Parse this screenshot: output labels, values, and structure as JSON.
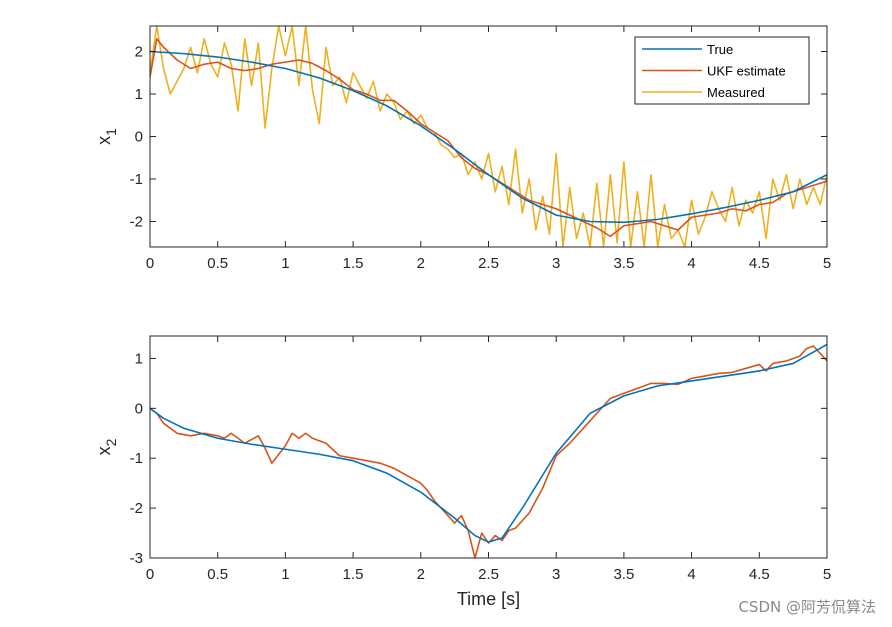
{
  "watermark": "CSDN @阿芳侃算法",
  "colors": {
    "true": "#0072BD",
    "ukf": "#D95319",
    "measured": "#EDB120",
    "axis": "#262626"
  },
  "chart_data": [
    {
      "type": "line",
      "ylabel": "x",
      "ylabel_sub": "1",
      "xlabel": "",
      "xlim": [
        0,
        5
      ],
      "ylim": [
        -2.6,
        2.6
      ],
      "xticks": [
        "0",
        "0.5",
        "1",
        "1.5",
        "2",
        "2.5",
        "3",
        "3.5",
        "4",
        "4.5",
        "5"
      ],
      "yticks": [
        "-2",
        "-1",
        "0",
        "1",
        "2"
      ],
      "legend": {
        "position": "top-right",
        "entries": [
          "True",
          "UKF estimate",
          "Measured"
        ]
      },
      "series": [
        {
          "name": "True",
          "x": [
            0,
            0.25,
            0.5,
            0.75,
            1.0,
            1.25,
            1.5,
            1.75,
            2.0,
            2.25,
            2.5,
            2.75,
            3.0,
            3.25,
            3.5,
            3.75,
            4.0,
            4.25,
            4.5,
            4.75,
            5.0
          ],
          "values": [
            2.0,
            1.95,
            1.87,
            1.75,
            1.6,
            1.38,
            1.08,
            0.72,
            0.25,
            -0.3,
            -0.9,
            -1.45,
            -1.85,
            -2.0,
            -2.02,
            -1.95,
            -1.82,
            -1.67,
            -1.5,
            -1.3,
            -0.9
          ]
        },
        {
          "name": "UKF estimate",
          "x": [
            0,
            0.05,
            0.1,
            0.2,
            0.3,
            0.4,
            0.5,
            0.6,
            0.7,
            0.8,
            0.9,
            1.0,
            1.1,
            1.2,
            1.3,
            1.4,
            1.5,
            1.6,
            1.7,
            1.8,
            1.9,
            2.0,
            2.1,
            2.2,
            2.3,
            2.4,
            2.5,
            2.6,
            2.7,
            2.8,
            2.9,
            3.0,
            3.1,
            3.2,
            3.3,
            3.4,
            3.5,
            3.6,
            3.7,
            3.8,
            3.9,
            4.0,
            4.1,
            4.2,
            4.3,
            4.4,
            4.5,
            4.6,
            4.7,
            4.8,
            4.9,
            5.0
          ],
          "values": [
            1.4,
            2.3,
            2.1,
            1.8,
            1.6,
            1.7,
            1.75,
            1.6,
            1.55,
            1.6,
            1.7,
            1.75,
            1.8,
            1.72,
            1.55,
            1.35,
            1.1,
            1.0,
            0.85,
            0.85,
            0.6,
            0.3,
            0.1,
            -0.1,
            -0.5,
            -0.75,
            -0.9,
            -1.1,
            -1.3,
            -1.5,
            -1.6,
            -1.7,
            -1.85,
            -2.0,
            -2.15,
            -2.35,
            -2.1,
            -2.05,
            -2.0,
            -2.1,
            -2.2,
            -1.9,
            -1.85,
            -1.8,
            -1.7,
            -1.75,
            -1.6,
            -1.55,
            -1.35,
            -1.25,
            -1.15,
            -1.05
          ]
        },
        {
          "name": "Measured",
          "x": [
            0,
            0.05,
            0.1,
            0.15,
            0.2,
            0.25,
            0.3,
            0.35,
            0.4,
            0.45,
            0.5,
            0.55,
            0.6,
            0.65,
            0.7,
            0.75,
            0.8,
            0.85,
            0.9,
            0.95,
            1.0,
            1.05,
            1.1,
            1.15,
            1.2,
            1.25,
            1.3,
            1.35,
            1.4,
            1.45,
            1.5,
            1.55,
            1.6,
            1.65,
            1.7,
            1.75,
            1.8,
            1.85,
            1.9,
            1.95,
            2.0,
            2.05,
            2.1,
            2.15,
            2.2,
            2.25,
            2.3,
            2.35,
            2.4,
            2.45,
            2.5,
            2.55,
            2.6,
            2.65,
            2.7,
            2.75,
            2.8,
            2.85,
            2.9,
            2.95,
            3.0,
            3.05,
            3.1,
            3.15,
            3.2,
            3.25,
            3.3,
            3.35,
            3.4,
            3.45,
            3.5,
            3.55,
            3.6,
            3.65,
            3.7,
            3.75,
            3.8,
            3.85,
            3.9,
            3.95,
            4.0,
            4.05,
            4.1,
            4.15,
            4.2,
            4.25,
            4.3,
            4.35,
            4.4,
            4.45,
            4.5,
            4.55,
            4.6,
            4.65,
            4.7,
            4.75,
            4.8,
            4.85,
            4.9,
            4.95,
            5.0
          ],
          "values": [
            1.5,
            2.6,
            1.6,
            1.0,
            1.3,
            1.6,
            2.1,
            1.5,
            2.3,
            1.7,
            1.4,
            2.2,
            1.7,
            0.6,
            2.3,
            1.2,
            2.2,
            0.2,
            1.6,
            2.6,
            1.9,
            2.6,
            1.2,
            2.6,
            1.1,
            0.3,
            2.1,
            1.2,
            1.4,
            0.8,
            1.5,
            1.2,
            0.9,
            1.3,
            0.6,
            1.0,
            0.8,
            0.4,
            0.6,
            0.3,
            0.5,
            0.2,
            0.1,
            -0.2,
            -0.3,
            -0.5,
            -0.4,
            -0.9,
            -0.6,
            -1.0,
            -0.4,
            -1.3,
            -0.7,
            -1.6,
            -0.3,
            -1.8,
            -1.0,
            -2.2,
            -1.4,
            -2.3,
            -0.4,
            -2.6,
            -1.2,
            -2.4,
            -1.8,
            -2.6,
            -1.1,
            -2.6,
            -0.9,
            -2.5,
            -0.6,
            -2.6,
            -1.3,
            -2.6,
            -0.9,
            -2.6,
            -1.6,
            -2.4,
            -2.2,
            -2.6,
            -1.5,
            -2.3,
            -1.9,
            -1.3,
            -1.7,
            -2.0,
            -1.2,
            -2.1,
            -1.5,
            -1.8,
            -1.3,
            -2.4,
            -1.0,
            -1.5,
            -0.9,
            -1.7,
            -1.0,
            -1.6,
            -1.2,
            -1.6,
            -0.9
          ]
        }
      ]
    },
    {
      "type": "line",
      "ylabel": "x",
      "ylabel_sub": "2",
      "xlabel": "Time [s]",
      "xlim": [
        0,
        5
      ],
      "ylim": [
        -3,
        1.45
      ],
      "xticks": [
        "0",
        "0.5",
        "1",
        "1.5",
        "2",
        "2.5",
        "3",
        "3.5",
        "4",
        "4.5",
        "5"
      ],
      "yticks": [
        "-3",
        "-2",
        "-1",
        "0",
        "1"
      ],
      "series": [
        {
          "name": "True",
          "x": [
            0,
            0.1,
            0.25,
            0.5,
            0.75,
            1.0,
            1.25,
            1.5,
            1.75,
            2.0,
            2.25,
            2.4,
            2.5,
            2.6,
            2.75,
            3.0,
            3.25,
            3.5,
            3.75,
            4.0,
            4.25,
            4.5,
            4.75,
            5.0
          ],
          "values": [
            0,
            -0.2,
            -0.4,
            -0.6,
            -0.72,
            -0.82,
            -0.92,
            -1.05,
            -1.3,
            -1.68,
            -2.2,
            -2.55,
            -2.68,
            -2.6,
            -2.0,
            -0.9,
            -0.1,
            0.25,
            0.45,
            0.55,
            0.65,
            0.75,
            0.9,
            1.28
          ]
        },
        {
          "name": "UKF estimate",
          "x": [
            0,
            0.05,
            0.1,
            0.2,
            0.3,
            0.4,
            0.5,
            0.55,
            0.6,
            0.7,
            0.8,
            0.85,
            0.9,
            1.0,
            1.05,
            1.1,
            1.15,
            1.2,
            1.3,
            1.4,
            1.5,
            1.6,
            1.7,
            1.8,
            1.9,
            2.0,
            2.05,
            2.1,
            2.2,
            2.25,
            2.3,
            2.35,
            2.4,
            2.45,
            2.5,
            2.55,
            2.6,
            2.65,
            2.7,
            2.8,
            2.9,
            3.0,
            3.1,
            3.2,
            3.3,
            3.4,
            3.5,
            3.6,
            3.7,
            3.8,
            3.9,
            4.0,
            4.1,
            4.2,
            4.3,
            4.4,
            4.5,
            4.55,
            4.6,
            4.7,
            4.8,
            4.85,
            4.9,
            4.95,
            5.0
          ],
          "values": [
            0,
            -0.1,
            -0.3,
            -0.5,
            -0.55,
            -0.5,
            -0.55,
            -0.6,
            -0.5,
            -0.7,
            -0.55,
            -0.8,
            -1.1,
            -0.75,
            -0.5,
            -0.6,
            -0.5,
            -0.6,
            -0.7,
            -0.95,
            -1.0,
            -1.05,
            -1.1,
            -1.2,
            -1.35,
            -1.5,
            -1.65,
            -1.85,
            -2.15,
            -2.3,
            -2.15,
            -2.45,
            -3.0,
            -2.5,
            -2.7,
            -2.55,
            -2.65,
            -2.45,
            -2.4,
            -2.1,
            -1.6,
            -0.95,
            -0.7,
            -0.4,
            -0.1,
            0.2,
            0.3,
            0.4,
            0.5,
            0.5,
            0.48,
            0.6,
            0.65,
            0.7,
            0.72,
            0.8,
            0.88,
            0.75,
            0.9,
            0.95,
            1.05,
            1.2,
            1.25,
            1.1,
            0.95
          ]
        }
      ]
    }
  ]
}
